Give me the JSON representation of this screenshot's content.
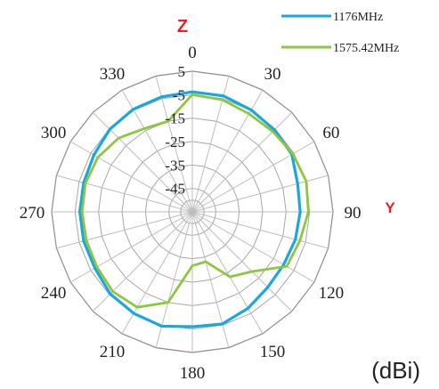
{
  "chart_data": {
    "type": "polar-line",
    "angle_unit": "degrees",
    "angle_direction": "clockwise",
    "zero_location": "top",
    "r_range": [
      -55,
      5
    ],
    "r_ticks": [
      5,
      -5,
      -15,
      -25,
      -35,
      -45
    ],
    "angle_ticks": [
      0,
      30,
      60,
      90,
      120,
      150,
      180,
      210,
      240,
      270,
      300,
      330
    ],
    "angle_tick_labels": [
      "0",
      "30",
      "60",
      "90",
      "120",
      "150",
      "180",
      "210",
      "240",
      "270",
      "300",
      "330"
    ],
    "spoke_step_deg": 15,
    "axis_markers": {
      "top": "Z",
      "right": "Y"
    },
    "unit_label": "(dBi)",
    "legend_position": "top-right",
    "series": [
      {
        "name": "1176MHz",
        "color": "#1aa7e0",
        "angles": [
          0,
          15,
          30,
          45,
          60,
          75,
          90,
          105,
          120,
          135,
          150,
          165,
          180,
          195,
          210,
          225,
          240,
          255,
          270,
          285,
          300,
          315,
          330,
          345
        ],
        "values": [
          -3.8,
          -3.8,
          -4.8,
          -5.5,
          -6,
          -8.5,
          -9,
          -9.5,
          -10,
          -9.5,
          -7.5,
          -5.5,
          -6,
          -4.5,
          -5,
          -5.5,
          -7,
          -7,
          -7,
          -7,
          -6.5,
          -5.2,
          -4.5,
          -4.2
        ]
      },
      {
        "name": "1575.42MHz",
        "color": "#8dc63f",
        "angles": [
          0,
          15,
          30,
          45,
          60,
          75,
          90,
          105,
          120,
          135,
          150,
          165,
          180,
          195,
          210,
          225,
          240,
          255,
          270,
          285,
          300,
          315,
          330,
          345
        ],
        "values": [
          -5,
          -5.5,
          -6.7,
          -6.5,
          -5.5,
          -4.7,
          -5.5,
          -7.5,
          -8.5,
          -19,
          -23,
          -33,
          -32,
          -15,
          -8,
          -7,
          -8,
          -8.2,
          -8,
          -7.8,
          -8.5,
          -10.5,
          -14,
          -15
        ]
      }
    ]
  }
}
